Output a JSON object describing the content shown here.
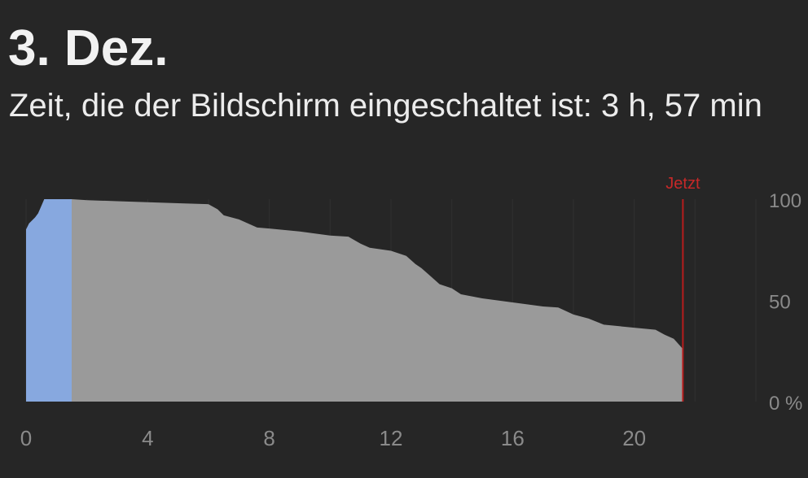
{
  "header": {
    "date": "3. Dez.",
    "screen_on_time": "Zeit, die der Bildschirm eingeschaltet ist: 3 h, 57 min"
  },
  "chart_data": {
    "type": "area",
    "xlim": [
      0,
      24
    ],
    "ylim": [
      0,
      100
    ],
    "x_ticks": [
      0,
      4,
      8,
      12,
      16,
      20
    ],
    "x_tick_labels": [
      "0",
      "4",
      "8",
      "12",
      "16",
      "20"
    ],
    "y_ticks": [
      100,
      50,
      0
    ],
    "y_tick_labels": [
      "100",
      "50",
      "0 %"
    ],
    "grid": true,
    "now_marker": {
      "label": "Jetzt",
      "x": 21.6
    },
    "charging_interval": [
      0,
      1.5
    ],
    "series": [
      {
        "x": [
          0,
          0.1,
          0.3,
          0.4,
          0.6,
          1.0,
          1.5,
          2.0,
          3.0,
          4.0,
          5.0,
          6.0,
          6.3,
          6.5,
          7.0,
          7.3,
          7.6,
          8.0,
          9.0,
          10.0,
          10.6,
          11.0,
          11.3,
          12.0,
          12.5,
          12.8,
          13.0,
          13.3,
          13.6,
          14.0,
          14.3,
          15.0,
          16.0,
          17.0,
          17.5,
          18.0,
          18.5,
          19.0,
          20.0,
          20.7,
          21.0,
          21.3,
          21.6
        ],
        "y": [
          85,
          88,
          91,
          93,
          100,
          100,
          100,
          99.5,
          99,
          98.5,
          98,
          97.5,
          95,
          92,
          90,
          88,
          86,
          85.5,
          84,
          82,
          81.5,
          78,
          76,
          74.5,
          72,
          68,
          66,
          62,
          58,
          56,
          53,
          51,
          49,
          47,
          46.5,
          43,
          41,
          38,
          36.5,
          35.5,
          33,
          31,
          26
        ]
      }
    ],
    "colors": {
      "battery_fill": "#9a9a9a",
      "charging_fill": "#87a8df",
      "now_line": "#b71c1c",
      "now_label": "#c62828",
      "grid": "#303030",
      "axis_text": "#8a8a8a"
    }
  }
}
